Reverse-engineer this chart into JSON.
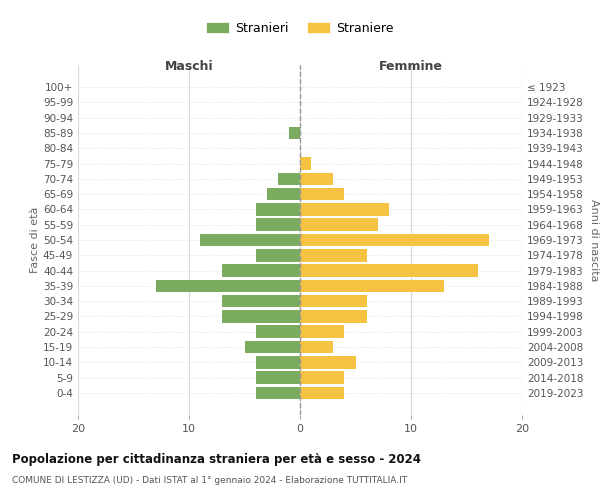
{
  "age_groups": [
    "0-4",
    "5-9",
    "10-14",
    "15-19",
    "20-24",
    "25-29",
    "30-34",
    "35-39",
    "40-44",
    "45-49",
    "50-54",
    "55-59",
    "60-64",
    "65-69",
    "70-74",
    "75-79",
    "80-84",
    "85-89",
    "90-94",
    "95-99",
    "100+"
  ],
  "birth_years": [
    "2019-2023",
    "2014-2018",
    "2009-2013",
    "2004-2008",
    "1999-2003",
    "1994-1998",
    "1989-1993",
    "1984-1988",
    "1979-1983",
    "1974-1978",
    "1969-1973",
    "1964-1968",
    "1959-1963",
    "1954-1958",
    "1949-1953",
    "1944-1948",
    "1939-1943",
    "1934-1938",
    "1929-1933",
    "1924-1928",
    "≤ 1923"
  ],
  "maschi": [
    4,
    4,
    4,
    5,
    4,
    7,
    7,
    13,
    7,
    4,
    9,
    4,
    4,
    3,
    2,
    0,
    0,
    1,
    0,
    0,
    0
  ],
  "femmine": [
    4,
    4,
    5,
    3,
    4,
    6,
    6,
    13,
    16,
    6,
    17,
    7,
    8,
    4,
    3,
    1,
    0,
    0,
    0,
    0,
    0
  ],
  "male_color": "#7aab5e",
  "female_color": "#f5c242",
  "bar_height": 0.82,
  "xlim": [
    -20,
    20
  ],
  "xlabel_left": "Maschi",
  "xlabel_right": "Femmine",
  "ylabel_left": "Fasce di età",
  "ylabel_right": "Anni di nascita",
  "legend_male": "Stranieri",
  "legend_female": "Straniere",
  "title": "Popolazione per cittadinanza straniera per età e sesso - 2024",
  "subtitle": "COMUNE DI LESTIZZA (UD) - Dati ISTAT al 1° gennaio 2024 - Elaborazione TUTTITALIA.IT",
  "bg_color": "#ffffff",
  "grid_color": "#d8d8d8",
  "xticks": [
    -20,
    -10,
    0,
    10,
    20
  ],
  "xtick_labels": [
    "20",
    "10",
    "0",
    "10",
    "20"
  ],
  "centerline_color": "#999999"
}
